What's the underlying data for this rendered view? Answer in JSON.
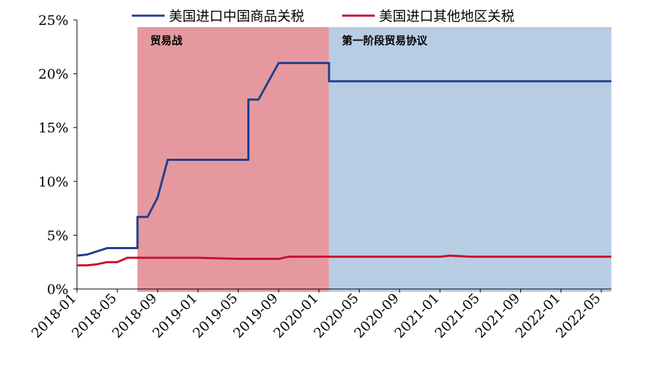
{
  "chart_data": {
    "type": "line",
    "title": "",
    "xlabel": "",
    "ylabel": "",
    "ylim": [
      0,
      25
    ],
    "y_ticks": [
      "0%",
      "5%",
      "10%",
      "15%",
      "20%",
      "25%"
    ],
    "x_ticks": [
      "2018-01",
      "2018-05",
      "2018-09",
      "2019-01",
      "2019-05",
      "2019-09",
      "2020-01",
      "2020-05",
      "2020-09",
      "2021-01",
      "2021-05",
      "2021-09",
      "2022-01",
      "2022-05"
    ],
    "x_range": [
      "2018-01",
      "2022-06"
    ],
    "grid": false,
    "legend_position": "top",
    "shaded_periods": [
      {
        "label": "贸易战",
        "start": "2018-07",
        "end": "2020-02",
        "color": "#e5999e"
      },
      {
        "label": "第一阶段贸易协议",
        "start": "2020-02",
        "end": "2022-06",
        "color": "#b8cce4"
      }
    ],
    "series": [
      {
        "name": "美国进口中国商品关税",
        "color": "#1f3f8f",
        "points": [
          [
            "2018-01",
            3.1
          ],
          [
            "2018-02",
            3.2
          ],
          [
            "2018-03",
            3.5
          ],
          [
            "2018-04",
            3.8
          ],
          [
            "2018-05",
            3.8
          ],
          [
            "2018-06",
            3.8
          ],
          [
            "2018-07",
            3.8
          ],
          [
            "2018-07",
            6.7
          ],
          [
            "2018-08",
            6.7
          ],
          [
            "2018-09",
            8.5
          ],
          [
            "2018-10",
            12.0
          ],
          [
            "2019-01",
            12.0
          ],
          [
            "2019-05",
            12.0
          ],
          [
            "2019-06",
            12.0
          ],
          [
            "2019-06",
            17.6
          ],
          [
            "2019-07",
            17.6
          ],
          [
            "2019-09",
            21.0
          ],
          [
            "2020-01",
            21.0
          ],
          [
            "2020-02",
            21.0
          ],
          [
            "2020-02",
            19.3
          ],
          [
            "2021-01",
            19.3
          ],
          [
            "2022-06",
            19.3
          ]
        ]
      },
      {
        "name": "美国进口其他地区关税",
        "color": "#c8102e",
        "points": [
          [
            "2018-01",
            2.2
          ],
          [
            "2018-02",
            2.2
          ],
          [
            "2018-03",
            2.3
          ],
          [
            "2018-04",
            2.5
          ],
          [
            "2018-05",
            2.5
          ],
          [
            "2018-06",
            2.9
          ],
          [
            "2018-09",
            2.9
          ],
          [
            "2019-01",
            2.9
          ],
          [
            "2019-05",
            2.8
          ],
          [
            "2019-09",
            2.8
          ],
          [
            "2019-10",
            3.0
          ],
          [
            "2020-01",
            3.0
          ],
          [
            "2020-09",
            3.0
          ],
          [
            "2021-01",
            3.0
          ],
          [
            "2021-02",
            3.1
          ],
          [
            "2021-04",
            3.0
          ],
          [
            "2022-06",
            3.0
          ]
        ]
      }
    ]
  }
}
